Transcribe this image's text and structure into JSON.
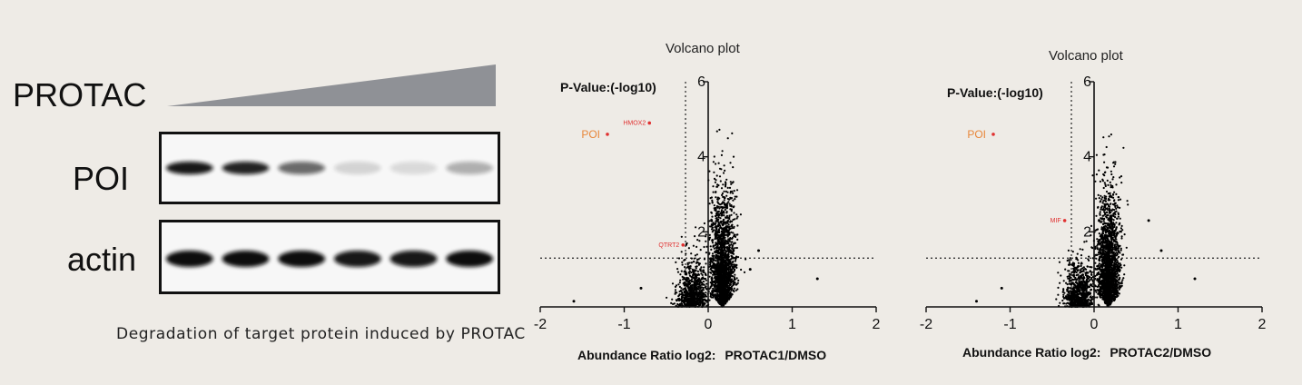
{
  "blot": {
    "protac_label": "PROTAC",
    "rows": [
      {
        "label": "POI",
        "band_intensity": [
          0.95,
          0.9,
          0.6,
          0.15,
          0.12,
          0.3
        ]
      },
      {
        "label": "actin",
        "band_intensity": [
          1.0,
          1.0,
          1.0,
          0.95,
          0.95,
          1.0
        ]
      }
    ],
    "lanes": 6,
    "caption": "Degradation of target protein induced by PROTAC"
  },
  "colors": {
    "background": "#eeebe6",
    "band": "#111111",
    "wedge": "#8f9196",
    "highlight_label": "#e8873a",
    "highlight_point": "#e03030",
    "points": "#000000"
  },
  "chart_data": [
    {
      "type": "scatter",
      "title": "Volcano plot",
      "ylabel": "P-Value:(-log10)",
      "xlabel_prefix": "Abundance Ratio log2:",
      "xlabel_ratio": "PROTAC1/DMSO",
      "xlim": [
        -2,
        2
      ],
      "ylim": [
        0,
        6
      ],
      "xticks": [
        "-2",
        "-1",
        "0",
        "1",
        "2"
      ],
      "yticks": [
        "2",
        "4",
        "6"
      ],
      "thresholds": {
        "x": -0.27,
        "y": 1.3
      },
      "highlights": [
        {
          "label": "POI",
          "x": -1.2,
          "y": 4.6
        },
        {
          "label": "HMOX2",
          "x": -0.7,
          "y": 4.9
        },
        {
          "label": "QTRT2",
          "x": -0.3,
          "y": 1.65
        }
      ],
      "outliers": [
        [
          -1.6,
          0.15
        ],
        [
          1.3,
          0.75
        ],
        [
          0.6,
          1.5
        ],
        [
          -0.8,
          0.5
        ],
        [
          0.5,
          1.0
        ]
      ]
    },
    {
      "type": "scatter",
      "title": "Volcano plot",
      "ylabel": "P-Value:(-log10)",
      "xlabel_prefix": "Abundance Ratio log2:",
      "xlabel_ratio": "PROTAC2/DMSO",
      "xlim": [
        -2,
        2
      ],
      "ylim": [
        0,
        6
      ],
      "xticks": [
        "-2",
        "-1",
        "0",
        "1",
        "2"
      ],
      "yticks": [
        "2",
        "4",
        "6"
      ],
      "thresholds": {
        "x": -0.27,
        "y": 1.3
      },
      "highlights": [
        {
          "label": "POI",
          "x": -1.2,
          "y": 4.6
        },
        {
          "label": "MIF",
          "x": -0.35,
          "y": 2.3
        }
      ],
      "outliers": [
        [
          -1.4,
          0.15
        ],
        [
          1.2,
          0.75
        ],
        [
          0.65,
          2.3
        ],
        [
          0.8,
          1.5
        ],
        [
          -1.1,
          0.5
        ]
      ]
    }
  ]
}
